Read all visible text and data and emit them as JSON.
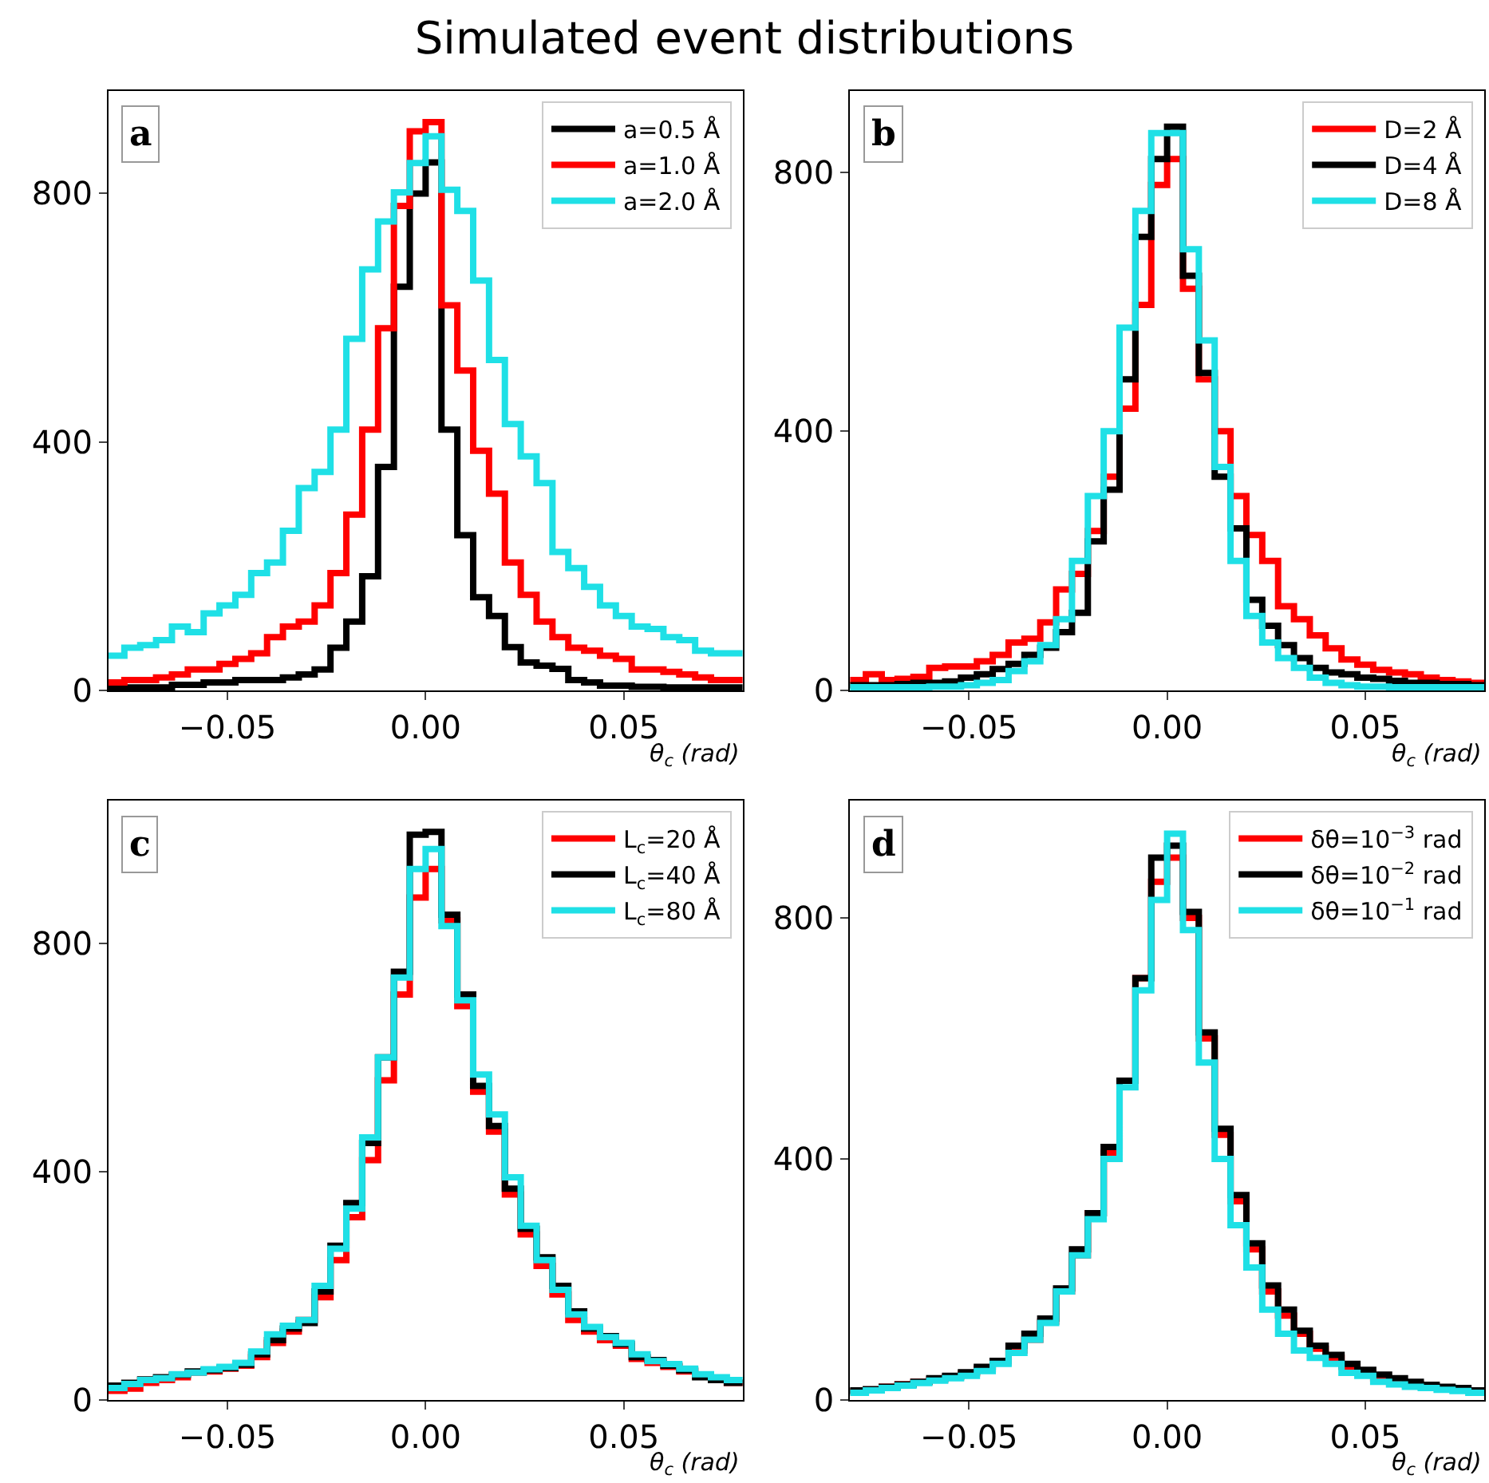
{
  "chart_data": [
    {
      "type": "histogram",
      "title": "Simulated event distributions",
      "annotations": [
        "a"
      ],
      "xlabel": "θ$_{c}$ (rad)",
      "legend": "top right",
      "xlim": [
        -0.08,
        0.08
      ],
      "ylim": [
        0,
        965
      ],
      "xticks": [
        {
          "value": -0.05,
          "label": "−0.05"
        },
        {
          "value": 0,
          "label": "0.00"
        },
        {
          "value": 0.05,
          "label": "0.05"
        }
      ],
      "yticks": [
        0,
        400,
        800
      ],
      "bins": [
        -0.08,
        -0.076,
        -0.072,
        -0.068,
        -0.064,
        -0.06,
        -0.056,
        -0.052,
        -0.048,
        -0.044,
        -0.04,
        -0.036,
        -0.032,
        -0.028,
        -0.024,
        -0.02,
        -0.016,
        -0.012,
        -0.008,
        -0.004,
        0,
        0.004,
        0.008,
        0.012,
        0.016,
        0.02,
        0.024,
        0.028,
        0.032,
        0.036,
        0.04,
        0.044,
        0.048,
        0.052,
        0.056,
        0.06,
        0.064,
        0.068,
        0.072,
        0.076,
        0.08
      ],
      "series": [
        {
          "name": "a=0.5 Å",
          "color": "#000000",
          "values": [
            5,
            5,
            5,
            5,
            9,
            9,
            13,
            13,
            17,
            17,
            17,
            21,
            26,
            34,
            69,
            111,
            184,
            360,
            650,
            800,
            850,
            420,
            250,
            150,
            120,
            70,
            45,
            40,
            35,
            17,
            13,
            8,
            8,
            6,
            6,
            5,
            5,
            5,
            5,
            5
          ]
        },
        {
          "name": "a=1.0 Å",
          "color": "#ff0000",
          "values": [
            13,
            17,
            17,
            21,
            26,
            34,
            34,
            43,
            51,
            60,
            86,
            103,
            111,
            137,
            189,
            283,
            420,
            583,
            780,
            900,
            915,
            620,
            515,
            386,
            317,
            206,
            154,
            111,
            86,
            69,
            64,
            56,
            51,
            34,
            34,
            30,
            26,
            21,
            17,
            17
          ]
        },
        {
          "name": "a=2.0 Å",
          "color": "#1fe0e6",
          "values": [
            56,
            69,
            73,
            81,
            103,
            94,
            124,
            137,
            154,
            189,
            206,
            257,
            326,
            352,
            420,
            566,
            678,
            755,
            802,
            849,
            892,
            806,
            772,
            660,
            532,
            429,
            377,
            334,
            223,
            197,
            167,
            137,
            120,
            103,
            99,
            86,
            81,
            64,
            60,
            60
          ]
        }
      ]
    },
    {
      "type": "histogram",
      "annotations": [
        "b"
      ],
      "xlabel": "θ$_{c}$ (rad)",
      "legend": "top right",
      "xlim": [
        -0.08,
        0.08
      ],
      "ylim": [
        0,
        925
      ],
      "xticks": [
        {
          "value": -0.05,
          "label": "−0.05"
        },
        {
          "value": 0,
          "label": "0.00"
        },
        {
          "value": 0.05,
          "label": "0.05"
        }
      ],
      "yticks": [
        0,
        400,
        800
      ],
      "bins": [
        -0.08,
        -0.076,
        -0.072,
        -0.068,
        -0.064,
        -0.06,
        -0.056,
        -0.052,
        -0.048,
        -0.044,
        -0.04,
        -0.036,
        -0.032,
        -0.028,
        -0.024,
        -0.02,
        -0.016,
        -0.012,
        -0.008,
        -0.004,
        0,
        0.004,
        0.008,
        0.012,
        0.016,
        0.02,
        0.024,
        0.028,
        0.032,
        0.036,
        0.04,
        0.044,
        0.048,
        0.052,
        0.056,
        0.06,
        0.064,
        0.068,
        0.072,
        0.076,
        0.08
      ],
      "series": [
        {
          "name": "D=2 Å",
          "color": "#ff0000",
          "values": [
            16,
            25,
            16,
            18,
            21,
            35,
            37,
            37,
            45,
            55,
            74,
            80,
            105,
            156,
            180,
            246,
            330,
            435,
            595,
            780,
            820,
            620,
            480,
            400,
            300,
            240,
            200,
            130,
            110,
            85,
            65,
            48,
            40,
            32,
            28,
            25,
            20,
            16,
            14,
            12
          ]
        },
        {
          "name": "D=4 Å",
          "color": "#000000",
          "values": [
            8,
            8,
            8,
            10,
            12,
            12,
            14,
            20,
            25,
            33,
            41,
            55,
            66,
            90,
            120,
            230,
            310,
            480,
            700,
            820,
            870,
            640,
            490,
            330,
            250,
            140,
            100,
            70,
            50,
            35,
            28,
            25,
            20,
            18,
            15,
            12,
            12,
            10,
            10,
            8
          ]
        },
        {
          "name": "D=8 Å",
          "color": "#1fe0e6",
          "values": [
            5,
            5,
            5,
            5,
            5,
            6,
            6,
            8,
            12,
            16,
            30,
            45,
            70,
            110,
            200,
            300,
            400,
            560,
            740,
            860,
            860,
            681,
            540,
            345,
            200,
            115,
            74,
            50,
            35,
            20,
            12,
            8,
            6,
            6,
            5,
            5,
            5,
            5,
            5,
            5
          ]
        }
      ]
    },
    {
      "type": "histogram",
      "annotations": [
        "c"
      ],
      "xlabel": "θ$_{c}$ (rad)",
      "legend": "top right",
      "xlim": [
        -0.08,
        0.08
      ],
      "ylim": [
        0,
        1050
      ],
      "xticks": [
        {
          "value": -0.05,
          "label": "−0.05"
        },
        {
          "value": 0,
          "label": "0.00"
        },
        {
          "value": 0.05,
          "label": "0.05"
        }
      ],
      "yticks": [
        0,
        400,
        800
      ],
      "bins": [
        -0.08,
        -0.076,
        -0.072,
        -0.068,
        -0.064,
        -0.06,
        -0.056,
        -0.052,
        -0.048,
        -0.044,
        -0.04,
        -0.036,
        -0.032,
        -0.028,
        -0.024,
        -0.02,
        -0.016,
        -0.012,
        -0.008,
        -0.004,
        0,
        0.004,
        0.008,
        0.012,
        0.016,
        0.02,
        0.024,
        0.028,
        0.032,
        0.036,
        0.04,
        0.044,
        0.048,
        0.052,
        0.056,
        0.06,
        0.064,
        0.068,
        0.072,
        0.076,
        0.08
      ],
      "series": [
        {
          "name": "L$_{c}$=20 Å",
          "color": "#ff0000",
          "values": [
            16,
            20,
            30,
            35,
            40,
            48,
            50,
            55,
            60,
            75,
            100,
            120,
            140,
            180,
            245,
            320,
            420,
            560,
            710,
            880,
            930,
            840,
            690,
            540,
            470,
            360,
            290,
            235,
            185,
            140,
            120,
            105,
            95,
            72,
            65,
            58,
            50,
            42,
            35,
            30
          ]
        },
        {
          "name": "L$_{c}$=40 Å",
          "color": "#000000",
          "values": [
            25,
            30,
            36,
            40,
            44,
            50,
            52,
            56,
            62,
            80,
            105,
            125,
            135,
            190,
            270,
            345,
            450,
            600,
            750,
            990,
            995,
            850,
            710,
            550,
            480,
            370,
            300,
            250,
            200,
            155,
            125,
            112,
            98,
            75,
            70,
            60,
            52,
            40,
            35,
            30
          ]
        },
        {
          "name": "L$_{c}$=80 Å",
          "color": "#1fe0e6",
          "values": [
            21,
            28,
            35,
            38,
            45,
            48,
            54,
            58,
            65,
            85,
            115,
            130,
            140,
            200,
            265,
            335,
            460,
            600,
            740,
            930,
            965,
            830,
            700,
            570,
            500,
            390,
            305,
            245,
            193,
            150,
            128,
            110,
            100,
            80,
            68,
            63,
            55,
            45,
            40,
            35
          ]
        }
      ]
    },
    {
      "type": "histogram",
      "annotations": [
        "d"
      ],
      "xlabel": "θ$_{c}$ (rad)",
      "legend": "top right",
      "xlim": [
        -0.08,
        0.08
      ],
      "ylim": [
        0,
        995
      ],
      "xticks": [
        {
          "value": -0.05,
          "label": "−0.05"
        },
        {
          "value": 0,
          "label": "0.00"
        },
        {
          "value": 0.05,
          "label": "0.05"
        }
      ],
      "yticks": [
        0,
        400,
        800
      ],
      "bins": [
        -0.08,
        -0.076,
        -0.072,
        -0.068,
        -0.064,
        -0.06,
        -0.056,
        -0.052,
        -0.048,
        -0.044,
        -0.04,
        -0.036,
        -0.032,
        -0.028,
        -0.024,
        -0.02,
        -0.016,
        -0.012,
        -0.008,
        -0.004,
        0,
        0.004,
        0.008,
        0.012,
        0.016,
        0.02,
        0.024,
        0.028,
        0.032,
        0.036,
        0.04,
        0.044,
        0.048,
        0.052,
        0.056,
        0.06,
        0.064,
        0.068,
        0.072,
        0.076,
        0.08
      ],
      "series": [
        {
          "name": "δθ=10$^{−3}$ rad",
          "color": "#ff0000",
          "values": [
            14,
            16,
            22,
            26,
            30,
            34,
            38,
            44,
            52,
            62,
            82,
            100,
            130,
            180,
            240,
            310,
            410,
            530,
            700,
            860,
            900,
            800,
            600,
            440,
            330,
            250,
            180,
            140,
            110,
            85,
            70,
            55,
            45,
            36,
            30,
            26,
            22,
            20,
            18,
            15
          ]
        },
        {
          "name": "δθ=10$^{−2}$ rad",
          "color": "#000000",
          "values": [
            16,
            18,
            22,
            26,
            30,
            36,
            40,
            46,
            55,
            65,
            90,
            110,
            135,
            185,
            250,
            310,
            420,
            530,
            700,
            900,
            920,
            810,
            610,
            450,
            340,
            260,
            190,
            150,
            115,
            90,
            75,
            60,
            50,
            42,
            36,
            30,
            25,
            22,
            20,
            16
          ]
        },
        {
          "name": "δθ=10$^{−1}$ rad",
          "color": "#1fe0e6",
          "values": [
            12,
            16,
            20,
            24,
            28,
            32,
            36,
            40,
            48,
            60,
            78,
            100,
            128,
            180,
            240,
            300,
            400,
            519,
            680,
            830,
            940,
            780,
            560,
            400,
            290,
            220,
            150,
            110,
            82,
            70,
            60,
            45,
            40,
            30,
            26,
            22,
            20,
            17,
            15,
            12
          ]
        }
      ]
    }
  ]
}
